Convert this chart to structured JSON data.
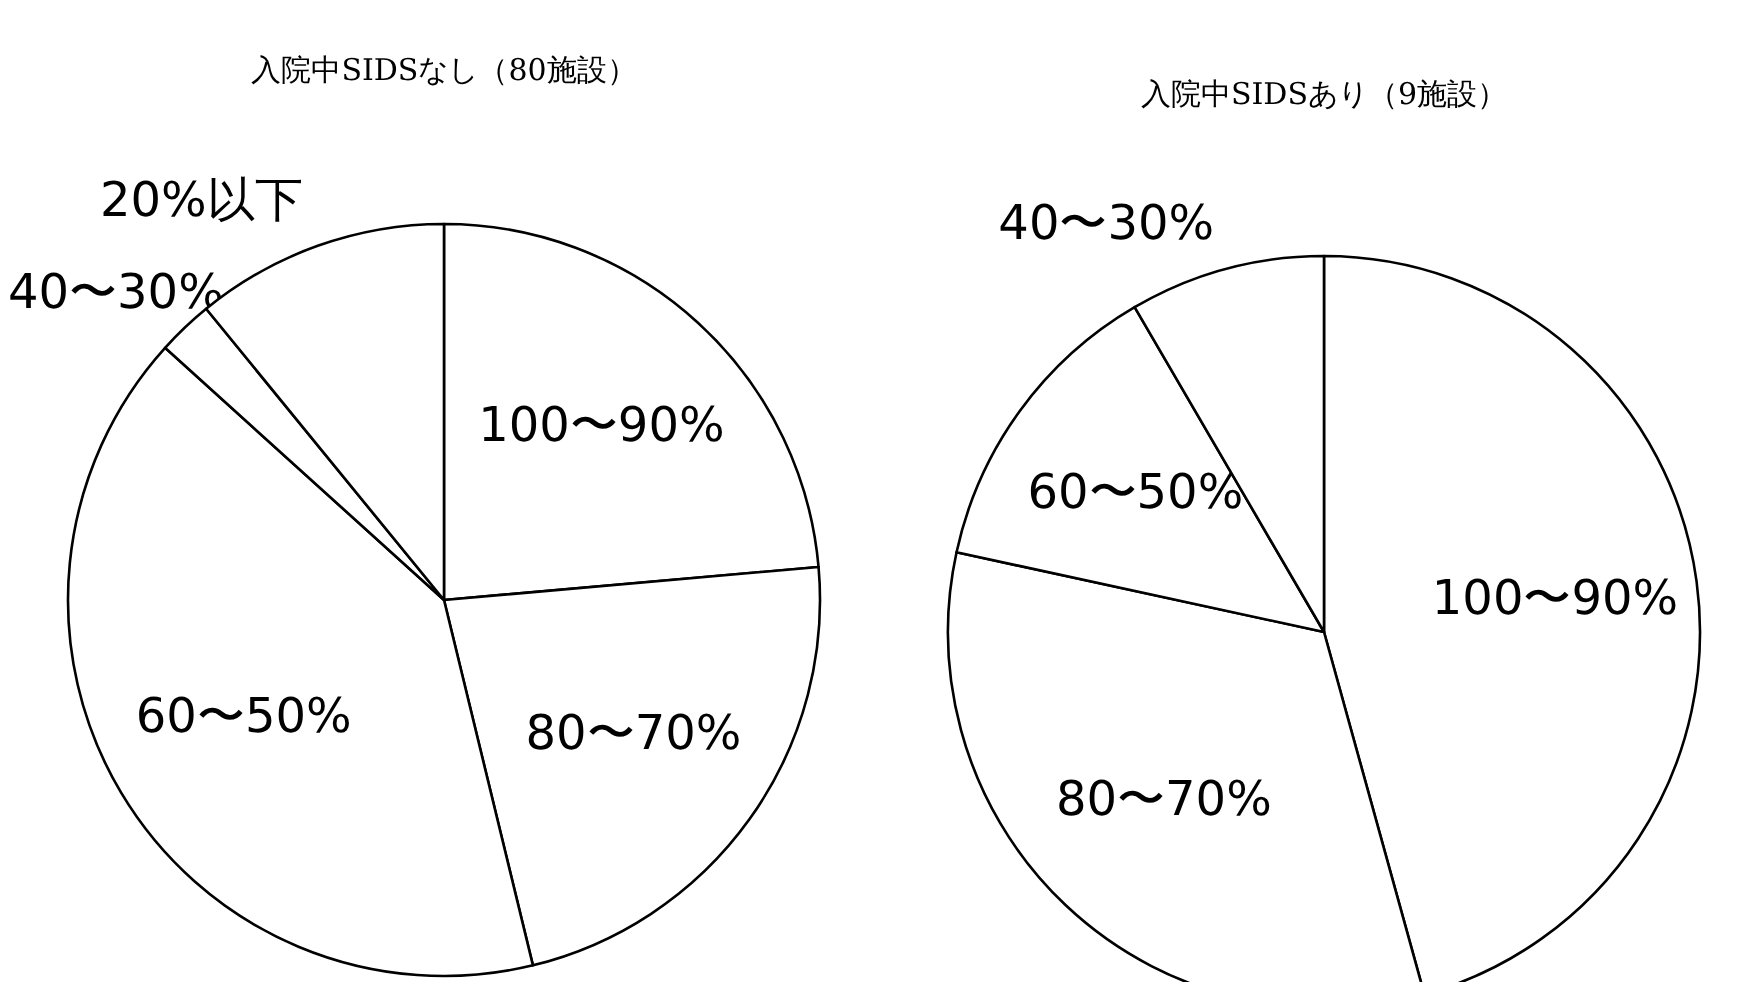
{
  "chart_data": [
    {
      "type": "pie",
      "title": "入院中SIDSなし（80施設）",
      "categories": [
        "100〜90%",
        "80〜70%",
        "60〜50%",
        "40〜30%",
        "20%以下"
      ],
      "values": [
        23.6,
        22.6,
        40.5,
        2.4,
        10.9
      ],
      "colors": [
        "#ffffff",
        "#ffffff",
        "#ffffff",
        "#ffffff",
        "#ffffff"
      ]
    },
    {
      "type": "pie",
      "title": "入院中SIDSあり（9施設）",
      "categories": [
        "100〜90%",
        "80〜70%",
        "60〜50%",
        "40〜30%"
      ],
      "values": [
        45.7,
        32.7,
        13.2,
        8.4
      ],
      "colors": [
        "#ffffff",
        "#ffffff",
        "#ffffff",
        "#ffffff"
      ]
    }
  ]
}
